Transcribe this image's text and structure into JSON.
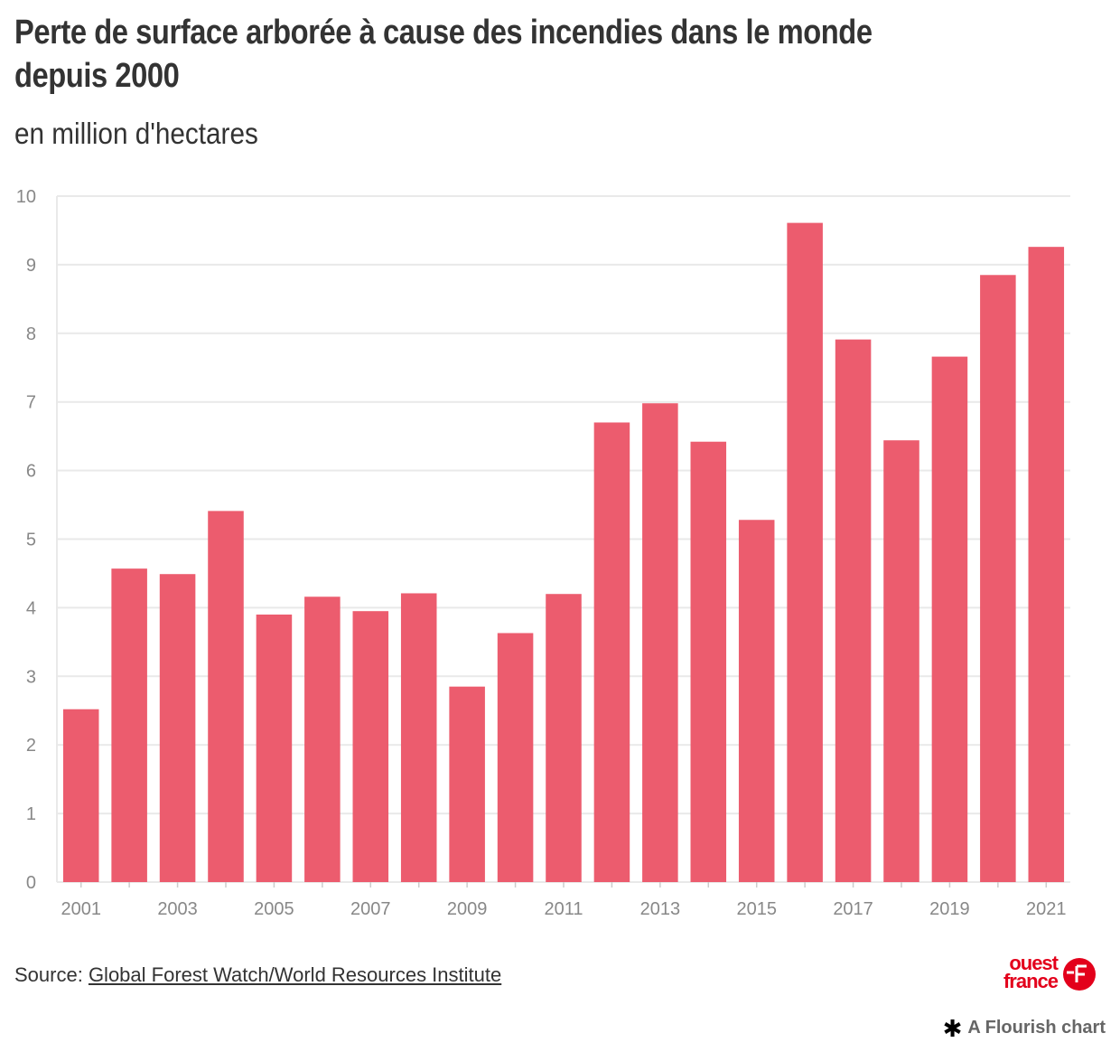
{
  "header": {
    "title": "Perte de surface arborée à cause des incendies dans le monde depuis 2000",
    "subtitle": "en million d'hectares"
  },
  "footer": {
    "source_prefix": "Source: ",
    "source_link": "Global Forest Watch/World Resources Institute",
    "logo_line1": "ouest",
    "logo_line2": "france",
    "flourish_icon": "✱",
    "flourish_label": "A Flourish chart"
  },
  "colors": {
    "bar": "#ec5c6e",
    "grid": "#e9e9e9",
    "tick": "#888888",
    "brand": "#e3001b"
  },
  "chart_data": {
    "type": "bar",
    "title": "Perte de surface arborée à cause des incendies dans le monde depuis 2000",
    "subtitle": "en million d'hectares",
    "xlabel": "",
    "ylabel": "",
    "ylim": [
      0,
      10
    ],
    "yticks": [
      0,
      1,
      2,
      3,
      4,
      5,
      6,
      7,
      8,
      9,
      10
    ],
    "grid": true,
    "categories": [
      "2001",
      "2002",
      "2003",
      "2004",
      "2005",
      "2006",
      "2007",
      "2008",
      "2009",
      "2010",
      "2011",
      "2012",
      "2013",
      "2014",
      "2015",
      "2016",
      "2017",
      "2018",
      "2019",
      "2020",
      "2021"
    ],
    "xtick_labels": [
      "2001",
      "2003",
      "2005",
      "2007",
      "2009",
      "2011",
      "2013",
      "2015",
      "2017",
      "2019",
      "2021"
    ],
    "values": [
      2.52,
      4.57,
      4.49,
      5.41,
      3.9,
      4.16,
      3.95,
      4.21,
      2.85,
      3.63,
      4.2,
      6.7,
      6.98,
      6.42,
      5.28,
      9.61,
      7.91,
      6.44,
      7.66,
      8.85,
      9.26
    ]
  }
}
